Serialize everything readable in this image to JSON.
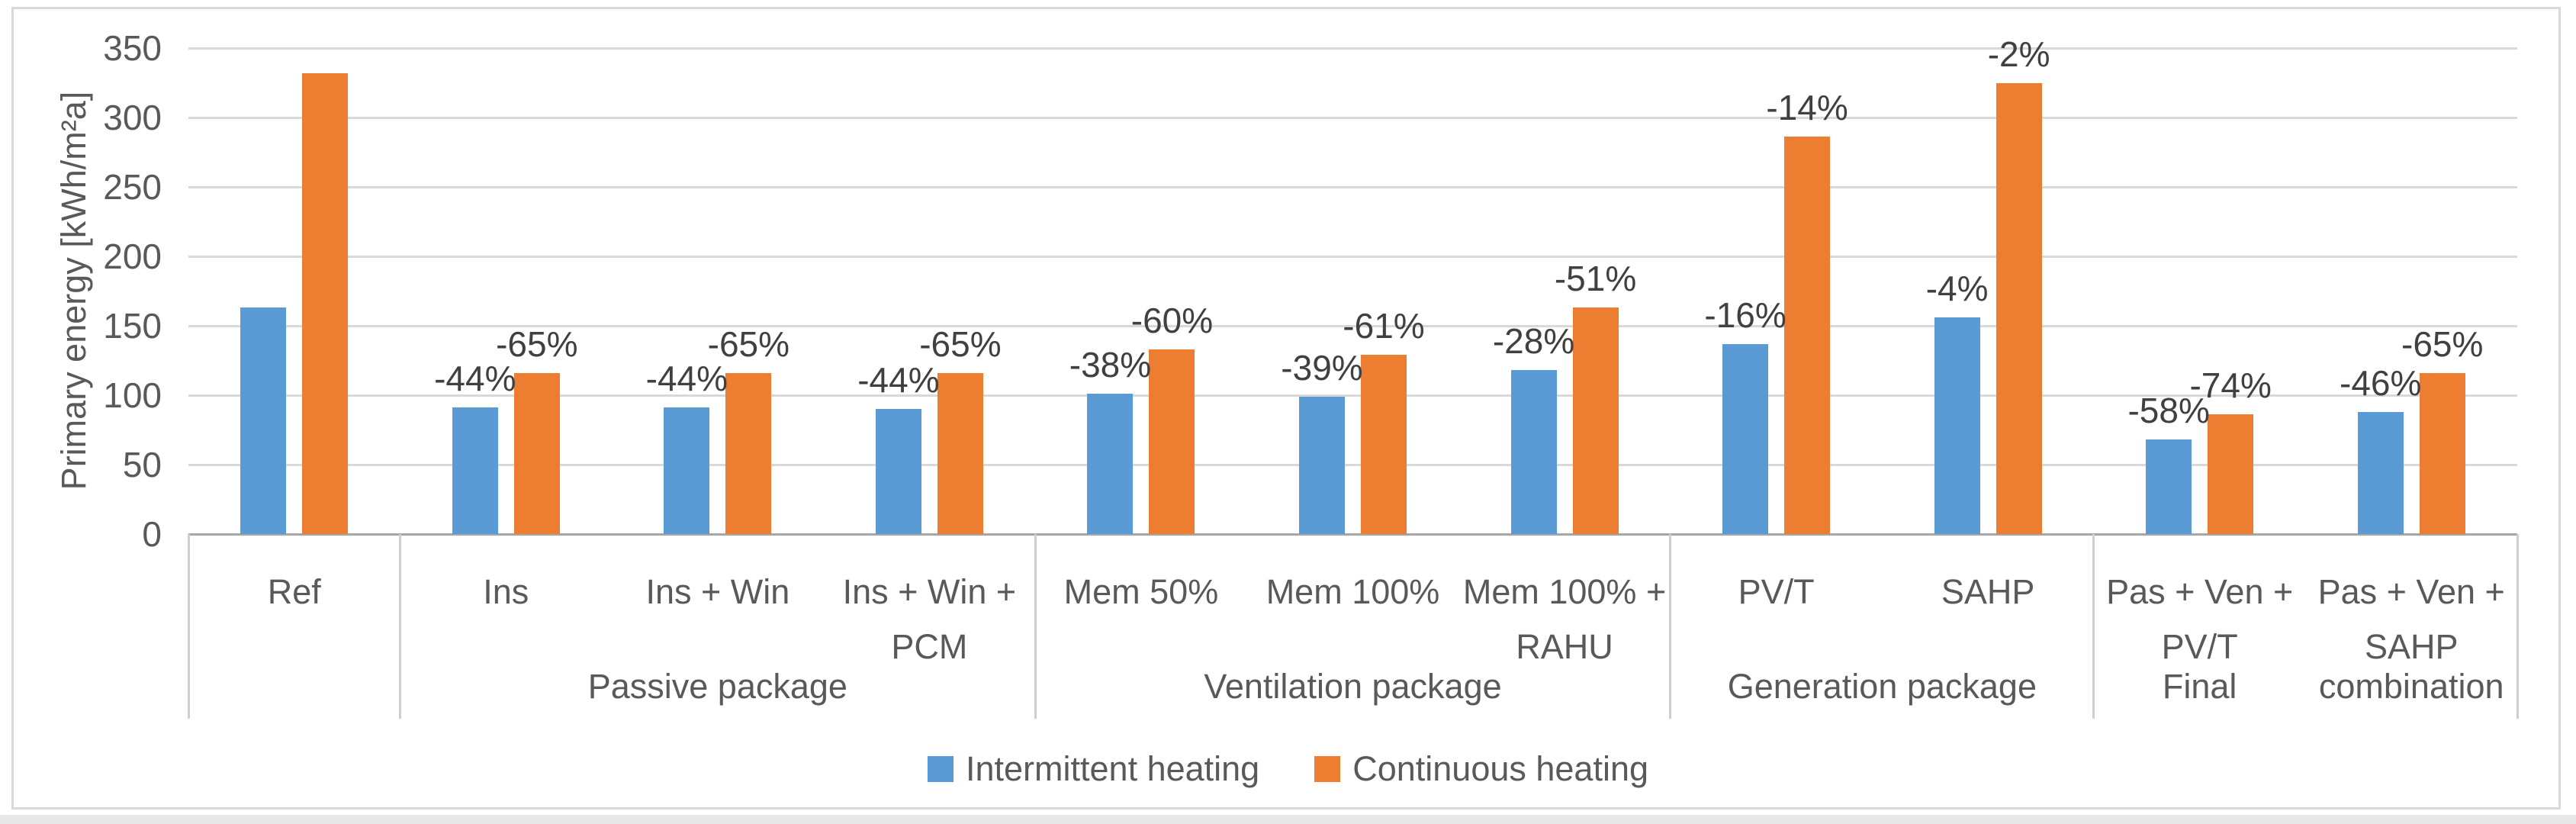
{
  "chart_data": {
    "type": "bar",
    "title": "",
    "ylabel": "Primary energy [kWh/m²a]",
    "ylim": [
      0,
      350
    ],
    "ytick_step": 50,
    "yticks": [
      0,
      50,
      100,
      150,
      200,
      250,
      300,
      350
    ],
    "grid": true,
    "legend_position": "bottom-center",
    "categories": [
      "Ref",
      "Ins",
      "Ins + Win",
      "Ins + Win + PCM",
      "Mem 50%",
      "Mem 100%",
      "Mem 100% + RAHU",
      "PV/T",
      "SAHP",
      "Pas + Ven + PV/T",
      "Pas + Ven + SAHP"
    ],
    "category_display_lines": [
      [
        "Ref"
      ],
      [
        "Ins"
      ],
      [
        "Ins + Win"
      ],
      [
        "Ins + Win +",
        "PCM"
      ],
      [
        "Mem 50%"
      ],
      [
        "Mem 100%"
      ],
      [
        "Mem 100% +",
        "RAHU"
      ],
      [
        "PV/T"
      ],
      [
        "SAHP"
      ],
      [
        "Pas + Ven +",
        "PV/T"
      ],
      [
        "Pas + Ven +",
        "SAHP"
      ]
    ],
    "series": [
      {
        "name": "Intermittent heating",
        "color": "#5B9BD5",
        "values": [
          163,
          91,
          91,
          90,
          101,
          99,
          118,
          137,
          156,
          68,
          88
        ],
        "data_labels": [
          "",
          "-44%",
          "-44%",
          "-44%",
          "-38%",
          "-39%",
          "-28%",
          "-16%",
          "-4%",
          "-58%",
          "-46%"
        ]
      },
      {
        "name": "Continuous heating",
        "color": "#ED7D31",
        "values": [
          332,
          116,
          116,
          116,
          133,
          129,
          163,
          286,
          325,
          86,
          116
        ],
        "data_labels": [
          "",
          "-65%",
          "-65%",
          "-65%",
          "-60%",
          "-61%",
          "-51%",
          "-14%",
          "-2%",
          "-74%",
          "-65%"
        ]
      }
    ],
    "category_groups": [
      {
        "label": "Passive package",
        "from": 1,
        "to": 3
      },
      {
        "label": "Ventilation package",
        "from": 4,
        "to": 6
      },
      {
        "label": "Generation package",
        "from": 7,
        "to": 8
      },
      {
        "label": "Final combination",
        "from": 9,
        "to": 10,
        "display_parts": [
          {
            "text": "Final",
            "slot": 9
          },
          {
            "text": "combination",
            "slot": 10
          }
        ]
      }
    ]
  },
  "colors": {
    "bar_blue": "#5B9BD5",
    "bar_orange": "#ED7D31",
    "gridline": "#D9D9D9",
    "axis_line": "#A6A6A6",
    "divider": "#CFCFCF",
    "axis_text": "#595959",
    "data_label_text": "#404040",
    "chart_border": "#D9D9D9",
    "bottom_band": "#E8E8E8",
    "background": "#FFFFFF"
  }
}
